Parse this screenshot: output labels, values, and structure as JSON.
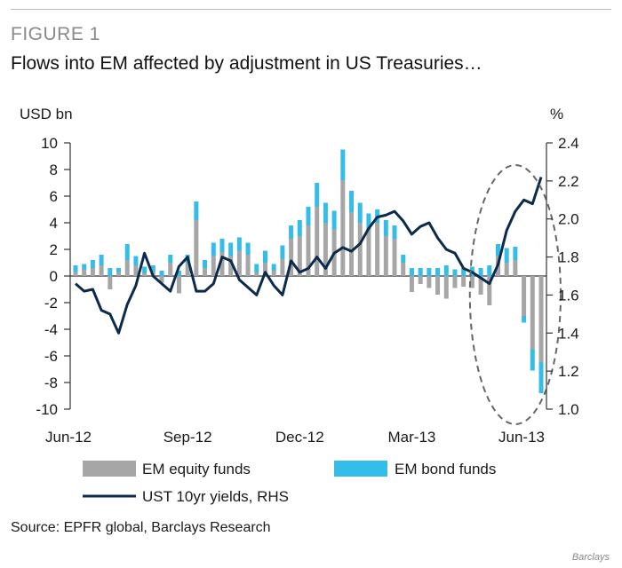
{
  "figure": {
    "label": "FIGURE 1",
    "title": "Flows into EM affected by adjustment in US Treasuries…",
    "source": "Source: EPFR global, Barclays Research",
    "credit": "Barclays"
  },
  "chart_data": {
    "type": "bar",
    "ylabel": "USD bn",
    "y2label": "%",
    "ylim": [
      -10,
      10
    ],
    "y2lim": [
      1.0,
      2.4
    ],
    "yticks": [
      10,
      8,
      6,
      4,
      2,
      0,
      -2,
      -4,
      -6,
      -8,
      -10
    ],
    "y2ticks": [
      2.4,
      2.2,
      2.0,
      1.8,
      1.6,
      1.4,
      1.2,
      1.0
    ],
    "xtick_labels": [
      {
        "label": "Jun-12",
        "index": 0
      },
      {
        "label": "Sep-12",
        "index": 13
      },
      {
        "label": "Dec-12",
        "index": 26
      },
      {
        "label": "Mar-13",
        "index": 39
      },
      {
        "label": "Jun-13",
        "index": 52
      }
    ],
    "colors": {
      "equity": "#a6a6a6",
      "bond": "#33bde8",
      "yield": "#0b2a4c",
      "ellipse": "#666666"
    },
    "series": [
      {
        "name": "EM equity funds",
        "kind": "bar",
        "values": [
          0.3,
          0.5,
          0.6,
          0.8,
          -1.0,
          0.3,
          1.2,
          0.8,
          0.2,
          0.3,
          -0.5,
          1.0,
          -1.3,
          1.0,
          4.2,
          0.6,
          1.5,
          1.8,
          1.5,
          1.9,
          1.6,
          0.3,
          1.0,
          0.4,
          1.3,
          2.8,
          3.0,
          3.8,
          5.2,
          4.0,
          3.5,
          7.2,
          4.8,
          4.0,
          3.5,
          4.0,
          3.0,
          2.8,
          1.0,
          -1.2,
          -0.6,
          -0.9,
          -1.4,
          -1.7,
          -0.9,
          -0.8,
          -0.9,
          -1.4,
          -2.2,
          1.5,
          1.0,
          1.2,
          -3.0,
          -5.5,
          -6.5
        ]
      },
      {
        "name": "EM bond funds",
        "kind": "bar",
        "values": [
          0.5,
          0.4,
          0.6,
          0.8,
          0.6,
          0.3,
          1.2,
          0.7,
          0.5,
          0.5,
          0.4,
          0.6,
          0.4,
          0.6,
          1.4,
          0.6,
          1.0,
          1.0,
          1.0,
          1.0,
          0.9,
          0.6,
          0.9,
          0.5,
          1.0,
          1.0,
          1.2,
          1.4,
          1.8,
          1.5,
          1.4,
          2.3,
          1.6,
          1.5,
          1.2,
          1.0,
          1.2,
          1.0,
          0.6,
          0.6,
          0.6,
          0.6,
          0.6,
          0.8,
          0.5,
          0.6,
          0.7,
          0.6,
          0.8,
          0.9,
          1.1,
          1.0,
          -0.5,
          -1.6,
          -2.3
        ]
      },
      {
        "name": "UST 10yr yields, RHS",
        "kind": "line",
        "values": [
          1.66,
          1.62,
          1.63,
          1.52,
          1.5,
          1.4,
          1.55,
          1.65,
          1.82,
          1.7,
          1.66,
          1.62,
          1.75,
          1.8,
          1.62,
          1.62,
          1.66,
          1.8,
          1.78,
          1.68,
          1.64,
          1.6,
          1.72,
          1.65,
          1.6,
          1.78,
          1.72,
          1.74,
          1.8,
          1.74,
          1.82,
          1.85,
          1.83,
          1.87,
          1.95,
          2.01,
          2.02,
          2.04,
          1.99,
          1.92,
          1.96,
          1.98,
          1.9,
          1.84,
          1.82,
          1.74,
          1.72,
          1.69,
          1.66,
          1.76,
          1.94,
          2.04,
          2.1,
          2.08,
          2.22
        ]
      }
    ]
  }
}
